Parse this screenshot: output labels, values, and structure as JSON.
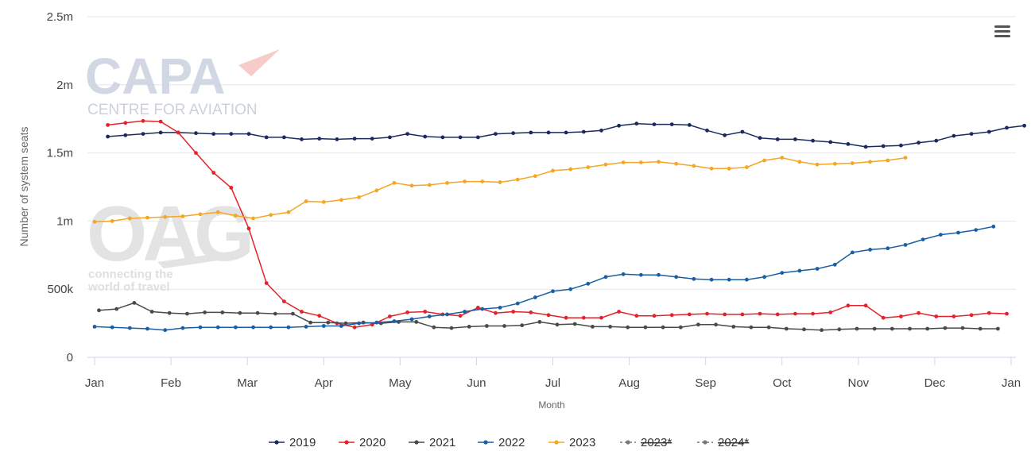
{
  "chart_data": {
    "type": "line",
    "title": "",
    "xlabel": "Month",
    "ylabel": "Number of system seats",
    "x_ticks": [
      "Jan",
      "Feb",
      "Mar",
      "Apr",
      "May",
      "Jun",
      "Jul",
      "Aug",
      "Sep",
      "Oct",
      "Nov",
      "Dec",
      "Jan"
    ],
    "y_ticks": [
      "0",
      "500k",
      "1m",
      "1.5m",
      "2m",
      "2.5m"
    ],
    "ylim": [
      0,
      2500000
    ],
    "xlim_weeks": [
      1,
      53
    ],
    "grid": "horizontal",
    "legend_position": "bottom-center",
    "series": [
      {
        "name": "2019",
        "color": "#1b2a5e",
        "x_start_week": 1.75,
        "values": [
          1620000,
          1630000,
          1640000,
          1650000,
          1650000,
          1645000,
          1640000,
          1640000,
          1640000,
          1615000,
          1615000,
          1600000,
          1605000,
          1600000,
          1605000,
          1605000,
          1615000,
          1640000,
          1620000,
          1615000,
          1615000,
          1615000,
          1640000,
          1645000,
          1650000,
          1650000,
          1650000,
          1655000,
          1665000,
          1700000,
          1715000,
          1710000,
          1710000,
          1705000,
          1665000,
          1630000,
          1655000,
          1610000,
          1600000,
          1600000,
          1590000,
          1580000,
          1565000,
          1545000,
          1550000,
          1555000,
          1575000,
          1590000,
          1625000,
          1640000,
          1655000,
          1685000,
          1700000
        ]
      },
      {
        "name": "2020",
        "color": "#e3232c",
        "x_start_week": 1.75,
        "values": [
          1705000,
          1720000,
          1735000,
          1730000,
          1650000,
          1500000,
          1355000,
          1245000,
          945000,
          545000,
          410000,
          335000,
          305000,
          250000,
          220000,
          240000,
          300000,
          330000,
          335000,
          315000,
          305000,
          365000,
          325000,
          335000,
          330000,
          310000,
          290000,
          290000,
          290000,
          335000,
          305000,
          305000,
          310000,
          315000,
          320000,
          315000,
          315000,
          320000,
          315000,
          320000,
          320000,
          330000,
          380000,
          380000,
          290000,
          300000,
          325000,
          300000,
          300000,
          310000,
          325000,
          320000
        ]
      },
      {
        "name": "2021",
        "color": "#4a4a4a",
        "x_start_week": 1.25,
        "values": [
          345000,
          355000,
          400000,
          335000,
          325000,
          320000,
          330000,
          330000,
          325000,
          325000,
          320000,
          320000,
          255000,
          255000,
          250000,
          255000,
          250000,
          260000,
          260000,
          220000,
          215000,
          225000,
          230000,
          230000,
          235000,
          260000,
          240000,
          245000,
          225000,
          225000,
          220000,
          220000,
          220000,
          220000,
          240000,
          240000,
          225000,
          220000,
          220000,
          210000,
          205000,
          200000,
          205000,
          210000,
          210000,
          210000,
          210000,
          210000,
          215000,
          215000,
          210000,
          210000
        ]
      },
      {
        "name": "2022",
        "color": "#1a5fa3",
        "x_start_week": 1.0,
        "values": [
          225000,
          220000,
          215000,
          210000,
          200000,
          215000,
          220000,
          220000,
          220000,
          220000,
          220000,
          220000,
          225000,
          230000,
          230000,
          250000,
          255000,
          265000,
          280000,
          300000,
          315000,
          335000,
          355000,
          365000,
          395000,
          440000,
          485000,
          500000,
          540000,
          590000,
          610000,
          605000,
          605000,
          590000,
          575000,
          570000,
          570000,
          570000,
          590000,
          620000,
          635000,
          650000,
          680000,
          770000,
          790000,
          800000,
          825000,
          865000,
          900000,
          915000,
          935000,
          960000
        ]
      },
      {
        "name": "2023",
        "color": "#f5a623",
        "x_start_week": 1.0,
        "values": [
          995000,
          1000000,
          1020000,
          1025000,
          1030000,
          1035000,
          1050000,
          1065000,
          1040000,
          1020000,
          1045000,
          1065000,
          1145000,
          1140000,
          1155000,
          1175000,
          1225000,
          1280000,
          1260000,
          1265000,
          1280000,
          1290000,
          1290000,
          1285000,
          1305000,
          1330000,
          1370000,
          1380000,
          1395000,
          1415000,
          1430000,
          1430000,
          1435000,
          1420000,
          1405000,
          1385000,
          1385000,
          1395000,
          1445000,
          1465000,
          1435000,
          1415000,
          1420000,
          1425000,
          1435000,
          1445000,
          1465000
        ]
      },
      {
        "name": "2023*",
        "color": "#777777",
        "dashed": true,
        "hidden": true,
        "values": []
      },
      {
        "name": "2024*",
        "color": "#777777",
        "dashed": true,
        "hidden": true,
        "values": []
      }
    ]
  },
  "watermark": {
    "capa_name": "CAPA",
    "capa_tagline": "CENTRE FOR AVIATION",
    "oag_name": "OAG",
    "oag_tagline_1": "connecting the",
    "oag_tagline_2": "world of travel"
  },
  "menu_icon": "hamburger-menu-icon"
}
